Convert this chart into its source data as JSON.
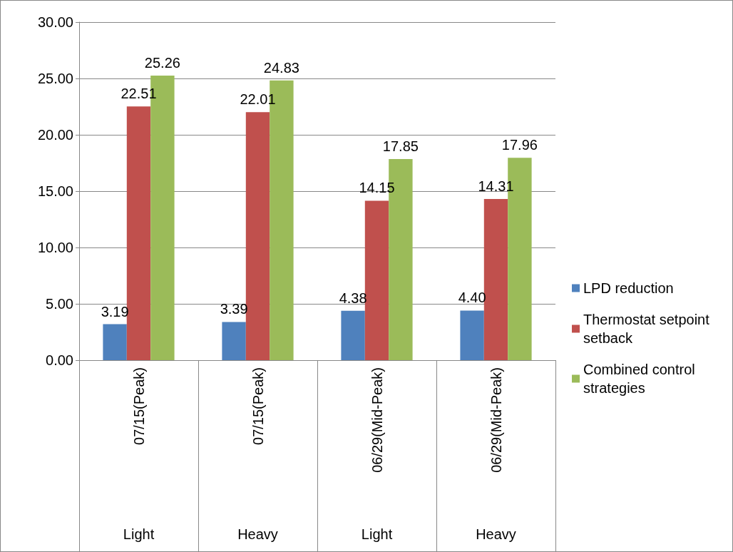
{
  "chart_data": {
    "type": "bar",
    "categories": [
      "07/15(Peak)",
      "07/15(Peak)",
      "06/29(Mid-Peak)",
      "06/29(Mid-Peak)"
    ],
    "series": [
      {
        "name": "LPD reduction",
        "color": "#4f81bd",
        "values": [
          3.19,
          3.39,
          4.38,
          4.4
        ],
        "value_labels": [
          "3.19",
          "3.39",
          "4.38",
          "4.40"
        ]
      },
      {
        "name": "Thermostat setpoint setback",
        "color": "#c0504d",
        "values": [
          22.51,
          22.01,
          14.15,
          14.31
        ],
        "value_labels": [
          "22.51",
          "22.01",
          "14.15",
          "14.31"
        ]
      },
      {
        "name": "Combined control strategies",
        "color": "#9bbb59",
        "values": [
          25.26,
          24.83,
          17.85,
          17.96
        ],
        "value_labels": [
          "25.26",
          "24.83",
          "17.85",
          "17.96"
        ]
      }
    ],
    "ylim": [
      0,
      30
    ],
    "yticks": [
      {
        "value": 0,
        "label": "0.00"
      },
      {
        "value": 5,
        "label": "5.00"
      },
      {
        "value": 10,
        "label": "10.00"
      },
      {
        "value": 15,
        "label": "15.00"
      },
      {
        "value": 20,
        "label": "20.00"
      },
      {
        "value": 25,
        "label": "25.00"
      },
      {
        "value": 30,
        "label": "30.00"
      }
    ],
    "grid": "y",
    "legend": "right",
    "annotations": [
      "Light",
      "Heavy",
      "Light",
      "Heavy"
    ]
  }
}
